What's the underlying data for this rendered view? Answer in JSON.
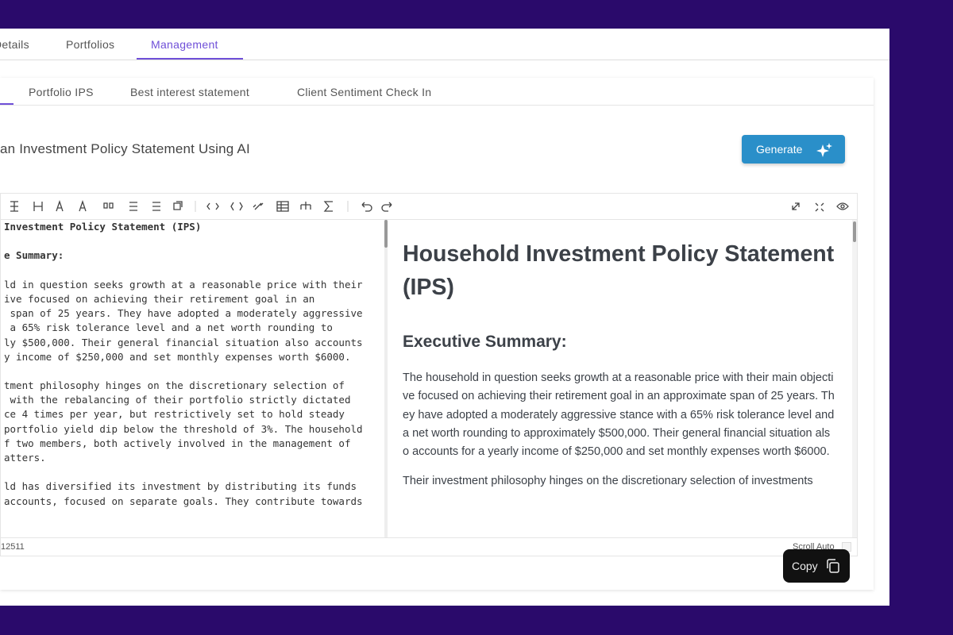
{
  "tabs": [
    "Details",
    "Portfolios",
    "Management"
  ],
  "subtabs": [
    "Portfolio IPS",
    "Best interest statement",
    "Client Sentiment Check In"
  ],
  "heading": "an Investment Policy Statement Using AI",
  "generate_button": "Generate",
  "editor": {
    "lines": [
      {
        "text": "Investment Policy Statement (IPS)",
        "bold": true
      },
      {
        "text": "",
        "bold": false
      },
      {
        "text": "e Summary:",
        "bold": true
      },
      {
        "text": "",
        "bold": false
      },
      {
        "text": "ld in question seeks growth at a reasonable price with their",
        "bold": false
      },
      {
        "text": "ive focused on achieving their retirement goal in an",
        "bold": false
      },
      {
        "text": " span of 25 years. They have adopted a moderately aggressive",
        "bold": false
      },
      {
        "text": " a 65% risk tolerance level and a net worth rounding to",
        "bold": false
      },
      {
        "text": "ly $500,000. Their general financial situation also accounts",
        "bold": false
      },
      {
        "text": "y income of $250,000 and set monthly expenses worth $6000.",
        "bold": false
      },
      {
        "text": "",
        "bold": false
      },
      {
        "text": "tment philosophy hinges on the discretionary selection of",
        "bold": false
      },
      {
        "text": " with the rebalancing of their portfolio strictly dictated",
        "bold": false
      },
      {
        "text": "ce 4 times per year, but restrictively set to hold steady",
        "bold": false
      },
      {
        "text": "portfolio yield dip below the threshold of 3%. The household",
        "bold": false
      },
      {
        "text": "f two members, both actively involved in the management of",
        "bold": false
      },
      {
        "text": "atters.",
        "bold": false
      },
      {
        "text": "",
        "bold": false
      },
      {
        "text": "ld has diversified its investment by distributing its funds",
        "bold": false
      },
      {
        "text": "accounts, focused on separate goals. They contribute towards",
        "bold": false
      }
    ]
  },
  "preview": {
    "title": "Household Investment Policy Statement (IPS)",
    "section": "Executive Summary:",
    "paragraphs": [
      "The household in question seeks growth at a reasonable price with their main objective focused on achieving their retirement goal in an approximate span of 25 years. They have adopted a moderately aggressive stance with a 65% risk tolerance level and a net worth rounding to approximately $500,000. Their general financial situation also accounts for a yearly income of $250,000 and set monthly expenses worth $6000.",
      "Their investment philosophy hinges on the discretionary selection of investments"
    ]
  },
  "copy_button": "Copy",
  "status": {
    "count": "12511",
    "scroll": "Scroll Auto"
  }
}
